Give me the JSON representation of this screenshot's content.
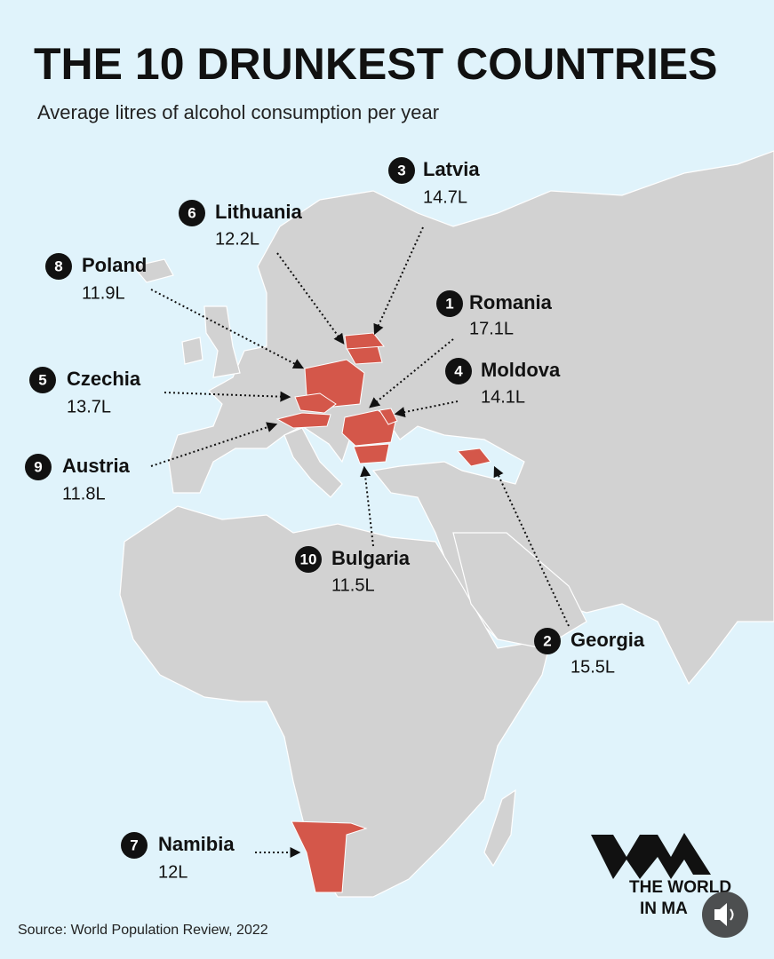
{
  "title": "THE 10 DRUNKEST COUNTRIES",
  "subtitle": "Average litres of alcohol consumption per year",
  "countries": [
    {
      "rank": "1",
      "name": "Romania",
      "value": "17.1L"
    },
    {
      "rank": "2",
      "name": "Georgia",
      "value": "15.5L"
    },
    {
      "rank": "3",
      "name": "Latvia",
      "value": "14.7L"
    },
    {
      "rank": "4",
      "name": "Moldova",
      "value": "14.1L"
    },
    {
      "rank": "5",
      "name": "Czechia",
      "value": "13.7L"
    },
    {
      "rank": "6",
      "name": "Lithuania",
      "value": "12.2L"
    },
    {
      "rank": "7",
      "name": "Namibia",
      "value": "12L"
    },
    {
      "rank": "8",
      "name": "Poland",
      "value": "11.9L"
    },
    {
      "rank": "9",
      "name": "Austria",
      "value": "11.8L"
    },
    {
      "rank": "10",
      "name": "Bulgaria",
      "value": "11.5L"
    }
  ],
  "source": "Source: World Population Review, 2022",
  "logo": {
    "line1": "THE WORLD",
    "line2": "IN MA"
  }
}
